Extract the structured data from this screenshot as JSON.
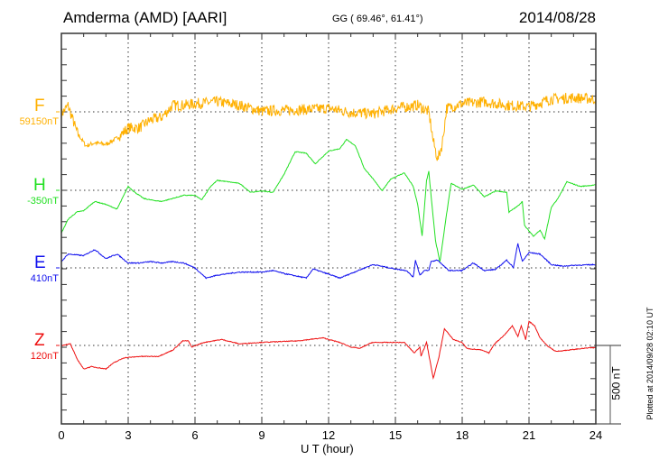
{
  "header": {
    "station": "Amderma (AMD)  [AARI]",
    "coords": "GG ( 69.46°,  61.41°)",
    "date": "2014/08/28"
  },
  "footer_note": "Plotted at 2014/09/28 02:10 UT",
  "scale_bar_label": "500 nT",
  "chart_data": {
    "type": "line",
    "title": "Amderma (AMD)  [AARI]",
    "xlabel": "U T (hour)",
    "xlim": [
      0,
      24
    ],
    "xticks": [
      "0",
      "3",
      "6",
      "9",
      "12",
      "15",
      "18",
      "21",
      "24"
    ],
    "grid": true,
    "scale_nT": 500,
    "series": [
      {
        "name": "F",
        "baseline_label": "59150nT",
        "color": "#ffb000",
        "noise_nT": 35,
        "x": [
          0,
          0.3,
          0.7,
          1.1,
          1.5,
          2,
          2.5,
          3,
          3.5,
          4,
          4.5,
          5,
          5.5,
          6,
          7,
          8,
          9,
          10,
          11,
          12,
          13,
          14,
          15,
          16,
          16.5,
          16.7,
          16.9,
          17.1,
          17.3,
          18,
          19,
          20,
          21,
          22,
          23,
          24
        ],
        "y": [
          -15,
          40,
          -130,
          -217,
          -197,
          -208,
          -168,
          -102,
          -102,
          -52,
          -35,
          42,
          42,
          52,
          64,
          42,
          4,
          10,
          15,
          23,
          -4,
          -12,
          23,
          42,
          0,
          -188,
          -304,
          -208,
          23,
          52,
          64,
          42,
          33,
          81,
          90,
          81
        ]
      },
      {
        "name": "H",
        "baseline_label": "-350nT",
        "color": "#22e022",
        "noise_nT": 6,
        "x": [
          0,
          0.3,
          0.7,
          1,
          1.5,
          2,
          2.5,
          3,
          3.3,
          3.7,
          4,
          4.5,
          5,
          5.5,
          6,
          6.3,
          6.7,
          7,
          7.5,
          8,
          8.5,
          9,
          9.5,
          10,
          10.5,
          11,
          11.4,
          12,
          12.5,
          12.8,
          13.2,
          13.6,
          14,
          14.4,
          14.8,
          15.4,
          15.8,
          16,
          16.2,
          16.4,
          16.5,
          16.6,
          16.8,
          17,
          17.3,
          17.5,
          18,
          18.5,
          19,
          19.5,
          20,
          20.1,
          20.5,
          20.7,
          20.8,
          21.2,
          21.5,
          21.7,
          22,
          22.3,
          22.7,
          23.3,
          24
        ],
        "y": [
          -273,
          -185,
          -138,
          -130,
          -71,
          -90,
          -120,
          25,
          -13,
          -52,
          -61,
          -71,
          -52,
          -32,
          -32,
          -61,
          25,
          63,
          54,
          44,
          -13,
          -4,
          -13,
          102,
          246,
          236,
          169,
          250,
          265,
          323,
          285,
          140,
          73,
          -4,
          73,
          111,
          25,
          -90,
          -292,
          63,
          121,
          -32,
          -321,
          -456,
          -150,
          44,
          6,
          34,
          -42,
          -4,
          -13,
          -139,
          -100,
          -71,
          -225,
          -292,
          -254,
          -311,
          -110,
          -52,
          54,
          25,
          34
        ]
      },
      {
        "name": "E",
        "baseline_label": "410nT",
        "color": "#1010ee",
        "noise_nT": 8,
        "x": [
          0,
          0.3,
          1,
          1.5,
          2,
          2.5,
          3,
          3.5,
          4,
          4.5,
          5,
          5.5,
          6,
          6.5,
          7,
          8,
          9,
          9.5,
          10,
          11,
          11.3,
          12,
          12.5,
          13,
          13.5,
          14,
          15,
          15.5,
          15.8,
          15.9,
          16.1,
          16.3,
          16.5,
          16.6,
          16.9,
          17.1,
          17.4,
          18,
          18.5,
          19,
          19.5,
          20,
          20.3,
          20.5,
          20.7,
          21,
          21.5,
          22,
          22.5,
          23,
          24
        ],
        "y": [
          40,
          88,
          78,
          117,
          59,
          88,
          31,
          31,
          40,
          31,
          40,
          31,
          0,
          -65,
          -46,
          -27,
          -27,
          -17,
          -36,
          -65,
          -7,
          -40,
          -65,
          -36,
          -7,
          21,
          -7,
          -17,
          -60,
          50,
          -46,
          -17,
          -17,
          40,
          50,
          21,
          -17,
          -17,
          31,
          -17,
          -10,
          50,
          2,
          156,
          40,
          98,
          88,
          21,
          11,
          16,
          21
        ]
      },
      {
        "name": "Z",
        "baseline_label": "120nT",
        "color": "#ee1010",
        "noise_nT": 6,
        "x": [
          0,
          0.4,
          0.7,
          1,
          1.35,
          2,
          2.3,
          2.8,
          3.55,
          4.35,
          5,
          5.45,
          5.7,
          5.85,
          6.4,
          7.2,
          8,
          8.9,
          10.6,
          11.75,
          12.5,
          13,
          13.4,
          13.95,
          15.4,
          15.85,
          16.1,
          16.15,
          16.4,
          16.7,
          16.95,
          17.2,
          17.6,
          18,
          18.2,
          18.85,
          19.2,
          19.45,
          19.9,
          20.25,
          20.5,
          20.65,
          20.85,
          21,
          21.25,
          21.5,
          21.8,
          22.2,
          22.8,
          23.7,
          24
        ],
        "y": [
          0,
          10,
          -85,
          -150,
          -135,
          -150,
          -115,
          -79,
          -70,
          -70,
          -30,
          29,
          29,
          -10,
          19,
          38,
          10,
          19,
          29,
          48,
          19,
          -10,
          -19,
          19,
          19,
          -48,
          -10,
          -67,
          19,
          -210,
          -77,
          106,
          38,
          19,
          -19,
          -29,
          -48,
          10,
          67,
          125,
          58,
          125,
          38,
          154,
          125,
          48,
          0,
          -38,
          -29,
          -15,
          -15
        ]
      }
    ]
  }
}
